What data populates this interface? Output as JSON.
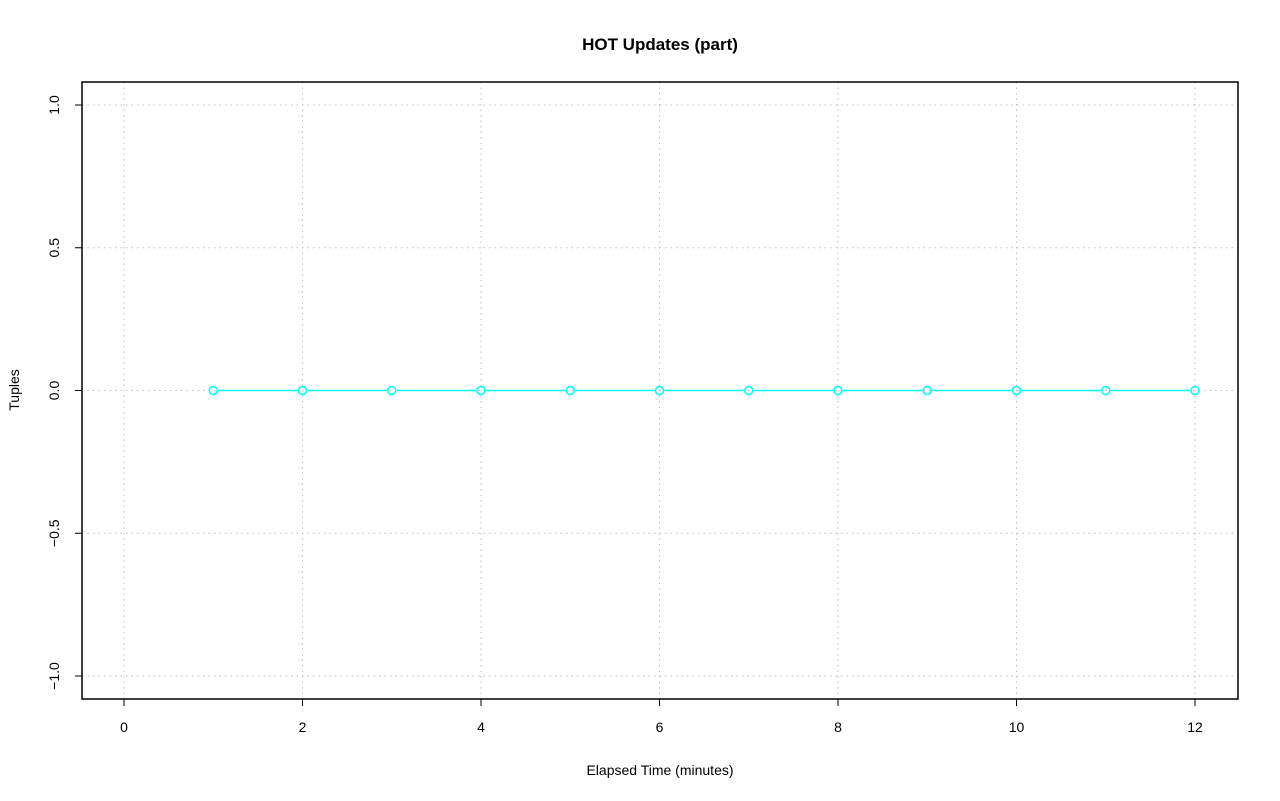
{
  "chart_data": {
    "type": "line",
    "title": "HOT Updates (part)",
    "xlabel": "Elapsed Time (minutes)",
    "ylabel": "Tuples",
    "xlim": [
      -0.5,
      12.5
    ],
    "ylim": [
      -1.08,
      1.08
    ],
    "xticks": [
      0,
      2,
      4,
      6,
      8,
      10,
      12
    ],
    "yticks": [
      -1.0,
      -0.5,
      0.0,
      0.5,
      1.0
    ],
    "ytick_labels": [
      "−1.0",
      "−0.5",
      "0.0",
      "0.5",
      "1.0"
    ],
    "grid": true,
    "series": [
      {
        "color": "#00ffff",
        "marker": "open-circle",
        "x": [
          1,
          2,
          3,
          4,
          5,
          6,
          7,
          8,
          9,
          10,
          11,
          12
        ],
        "y": [
          0,
          0,
          0,
          0,
          0,
          0,
          0,
          0,
          0,
          0,
          0,
          0
        ]
      }
    ]
  }
}
